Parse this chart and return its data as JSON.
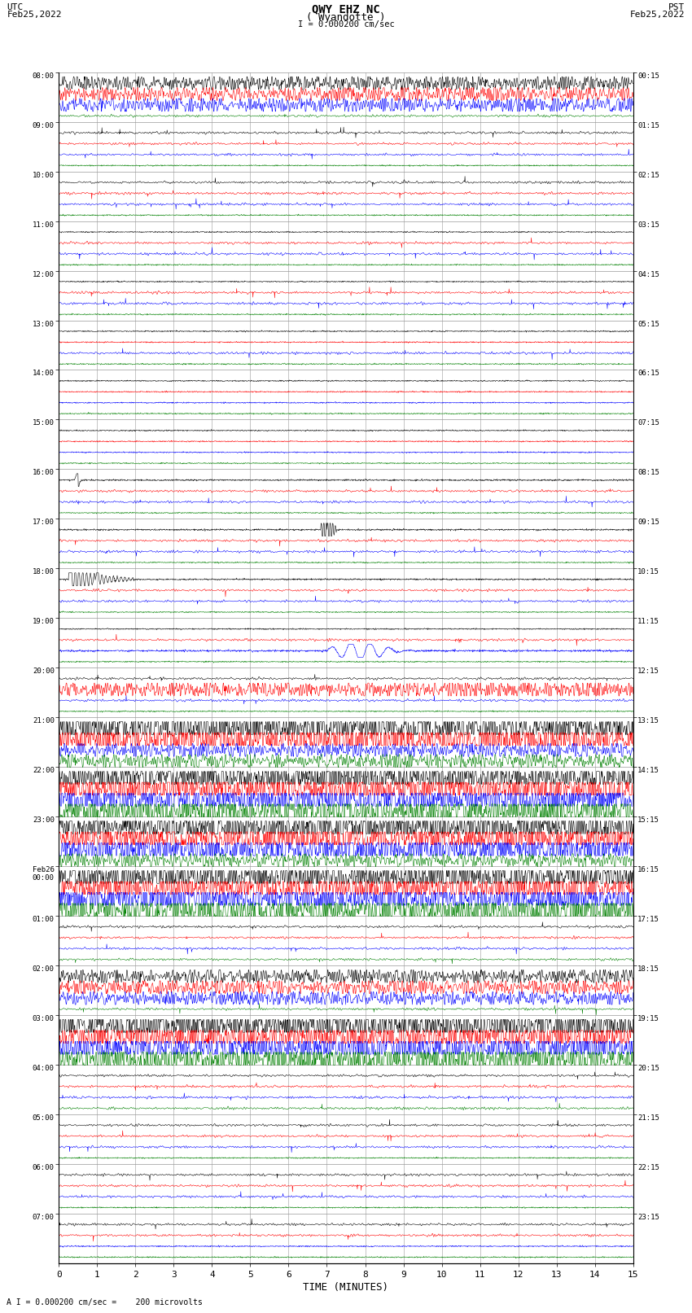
{
  "title_line1": "QWY EHZ NC",
  "title_line2": "( Wyandotte )",
  "scale_label": "I = 0.000200 cm/sec",
  "footer_label": "A I = 0.000200 cm/sec =    200 microvolts",
  "utc_label": "UTC",
  "utc_date": "Feb25,2022",
  "pst_label": "PST",
  "pst_date": "Feb25,2022",
  "xlabel": "TIME (MINUTES)",
  "left_times": [
    "08:00",
    "09:00",
    "10:00",
    "11:00",
    "12:00",
    "13:00",
    "14:00",
    "15:00",
    "16:00",
    "17:00",
    "18:00",
    "19:00",
    "20:00",
    "21:00",
    "22:00",
    "23:00",
    "Feb26\n00:00",
    "01:00",
    "02:00",
    "03:00",
    "04:00",
    "05:00",
    "06:00",
    "07:00"
  ],
  "right_times": [
    "00:15",
    "01:15",
    "02:15",
    "03:15",
    "04:15",
    "05:15",
    "06:15",
    "07:15",
    "08:15",
    "09:15",
    "10:15",
    "11:15",
    "12:15",
    "13:15",
    "14:15",
    "15:15",
    "16:15",
    "17:15",
    "18:15",
    "19:15",
    "20:15",
    "21:15",
    "22:15",
    "23:15"
  ],
  "n_rows": 24,
  "n_points": 1800,
  "xmin": 0,
  "xmax": 15,
  "bg_color": "#ffffff",
  "grid_color": "#aaaaaa",
  "trace_colors": [
    "#000000",
    "#ff0000",
    "#0000ff",
    "#008000"
  ],
  "row_activity": [
    "high",
    "low",
    "low",
    "low",
    "low",
    "low",
    "low",
    "low",
    "event_small",
    "event_medium",
    "event_large",
    "low_wave",
    "low_rise",
    "high",
    "high",
    "high",
    "high",
    "low_mod",
    "high",
    "high",
    "low_mod2",
    "low",
    "low",
    "low"
  ],
  "amp_high": 0.45,
  "amp_low": 0.04,
  "amp_low_mod": 0.1
}
